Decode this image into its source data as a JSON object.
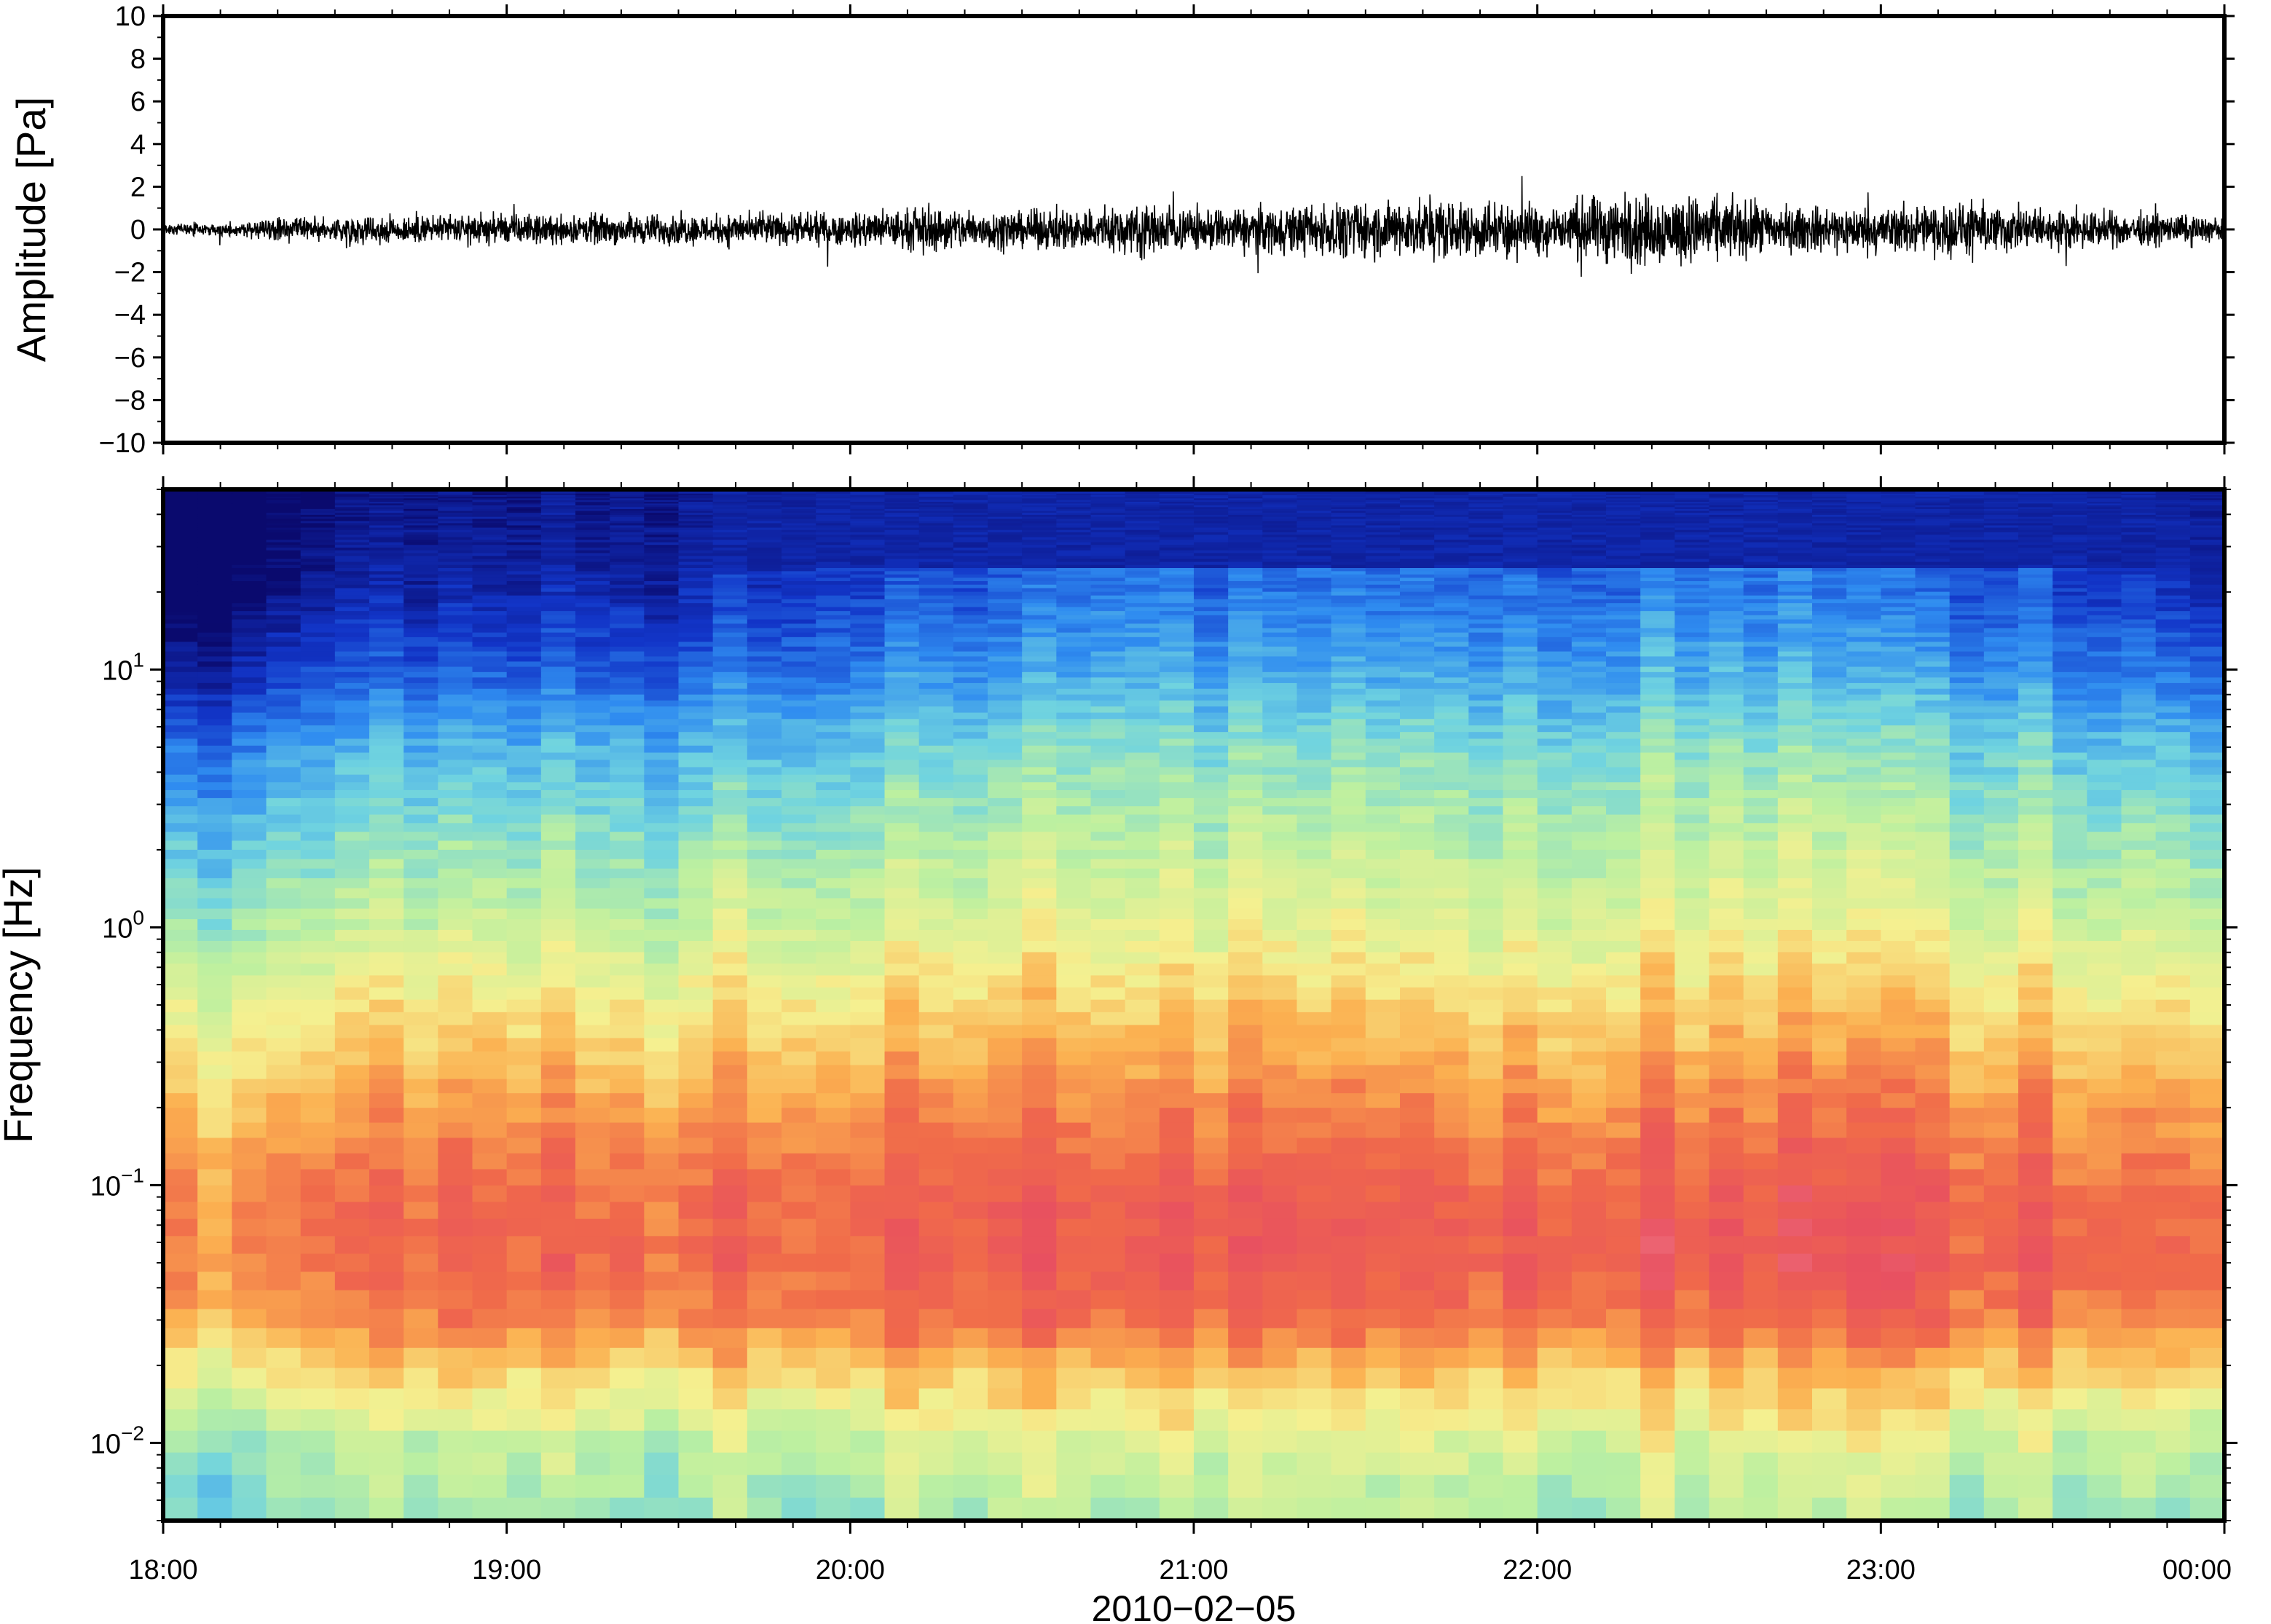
{
  "chart_data": [
    {
      "type": "line",
      "panel": "waveform",
      "ylabel": "Amplitude [Pa]",
      "ylim": [
        -10,
        10
      ],
      "yticks": [
        "10",
        "8",
        "6",
        "4",
        "2",
        "0",
        "−2",
        "−4",
        "−6",
        "−8",
        "−10"
      ],
      "ytick_values": [
        10,
        8,
        6,
        4,
        2,
        0,
        -2,
        -4,
        -6,
        -8,
        -10
      ],
      "xlim": [
        "18:00",
        "00:00"
      ],
      "envelope": {
        "x_hours": [
          18.0,
          18.5,
          19.0,
          19.5,
          20.0,
          20.25,
          20.5,
          20.75,
          20.85,
          21.0,
          21.25,
          21.5,
          21.75,
          22.0,
          22.25,
          22.5,
          22.75,
          23.0,
          23.25,
          23.5,
          23.75,
          24.0
        ],
        "peak_pa": [
          0.3,
          0.9,
          1.0,
          1.0,
          1.1,
          1.5,
          1.2,
          1.6,
          1.8,
          1.4,
          1.6,
          1.9,
          2.0,
          1.7,
          2.4,
          2.2,
          1.5,
          1.6,
          1.8,
          1.3,
          1.1,
          0.8
        ]
      },
      "color": "#000000",
      "grid": false
    },
    {
      "type": "heatmap",
      "panel": "spectrogram",
      "ylabel": "Frequency [Hz]",
      "yscale": "log",
      "ylim": [
        0.005,
        50
      ],
      "yticks": [
        {
          "value": 10,
          "base": "10",
          "exp": "1"
        },
        {
          "value": 1,
          "base": "10",
          "exp": "0"
        },
        {
          "value": 0.1,
          "base": "10",
          "exp": "−1"
        },
        {
          "value": 0.01,
          "base": "10",
          "exp": "−2"
        }
      ],
      "xticks": [
        "18:00",
        "19:00",
        "20:00",
        "21:00",
        "22:00",
        "23:00",
        "00:00"
      ],
      "xtick_hours": [
        18,
        19,
        20,
        21,
        22,
        23,
        24
      ],
      "xlabel": "2010−02−05",
      "colormap": [
        "#0a0a6e",
        "#1235c8",
        "#2f8cf0",
        "#6fd3e0",
        "#bdf0a0",
        "#f5f090",
        "#fbb050",
        "#f06a4a",
        "#e85060",
        "#f8a0a8"
      ],
      "level_profile": {
        "freq_hz": [
          50,
          20,
          10,
          5,
          2,
          1,
          0.5,
          0.2,
          0.1,
          0.05,
          0.03,
          0.02,
          0.01,
          0.005
        ],
        "level": [
          0.02,
          0.06,
          0.15,
          0.27,
          0.38,
          0.46,
          0.56,
          0.68,
          0.76,
          0.78,
          0.72,
          0.6,
          0.45,
          0.38
        ]
      },
      "activity": {
        "x_hours": [
          18.0,
          18.5,
          19.0,
          19.5,
          20.0,
          20.5,
          20.8,
          21.0,
          21.5,
          22.0,
          22.5,
          23.0,
          23.5,
          24.0
        ],
        "gain": [
          -0.1,
          0.0,
          0.0,
          0.02,
          0.06,
          0.08,
          0.14,
          0.09,
          0.12,
          0.1,
          0.13,
          0.09,
          0.07,
          0.03
        ]
      },
      "grid": false
    }
  ]
}
